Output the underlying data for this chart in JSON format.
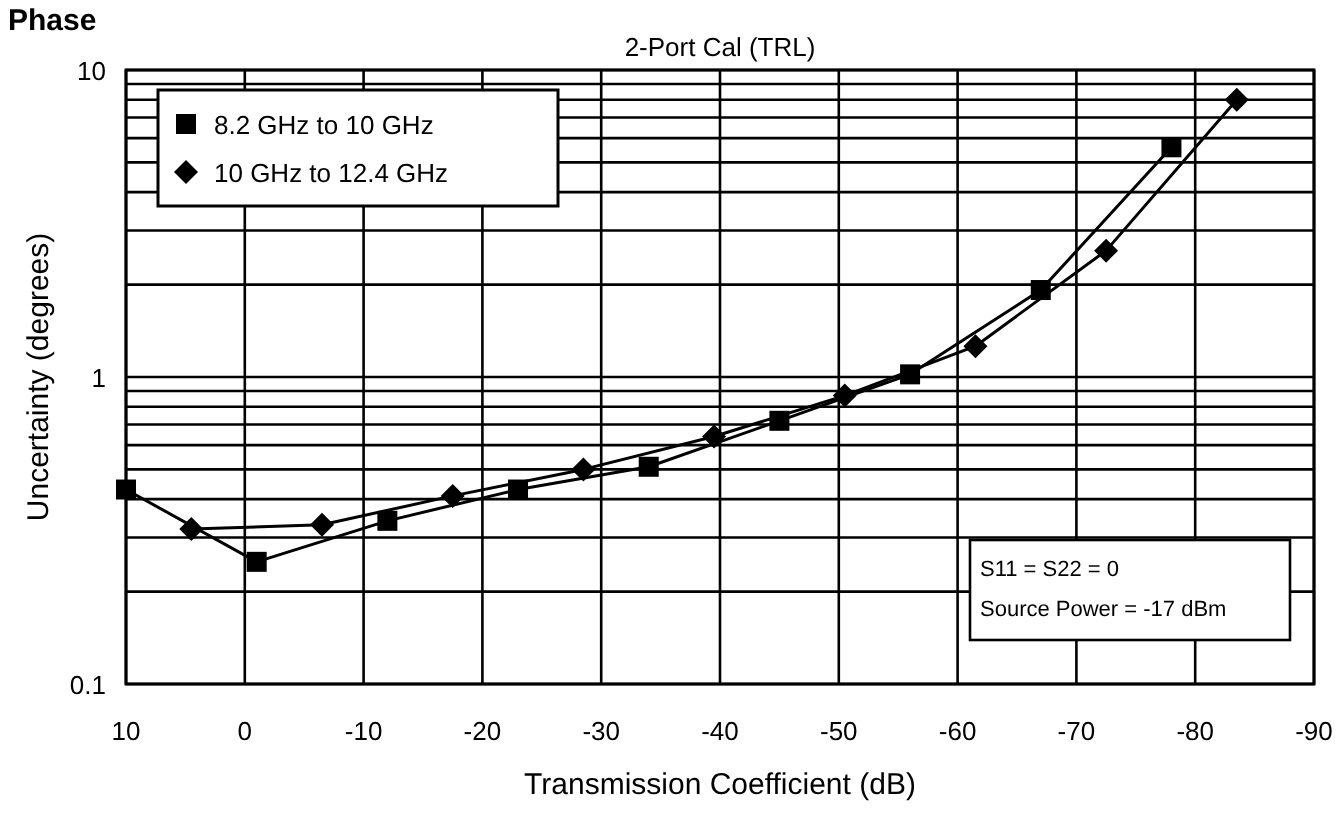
{
  "chart_data": {
    "type": "line",
    "title": "Phase",
    "subtitle": "2-Port Cal (TRL)",
    "xlabel": "Transmission Coefficient (dB)",
    "ylabel": "Uncertainty (degrees)",
    "annotations": [
      "S11 = S22 = 0",
      "Source Power = -17 dBm"
    ],
    "series": [
      {
        "name": "8.2 GHz to 10 GHz",
        "color": "#000000",
        "marker": "square",
        "x": [
          10,
          -1,
          -12,
          -23,
          -34,
          -45,
          -56,
          -67,
          -78
        ],
        "values": [
          0.43,
          0.25,
          0.34,
          0.43,
          0.51,
          0.72,
          1.02,
          1.92,
          5.6
        ]
      },
      {
        "name": "10 GHz to 12.4 GHz",
        "color": "#000000",
        "marker": "diamond",
        "x": [
          4.5,
          -6.5,
          -17.5,
          -28.5,
          -39.5,
          -50.5,
          -61.5,
          -72.5,
          -83.5
        ],
        "values": [
          0.32,
          0.33,
          0.41,
          0.5,
          0.64,
          0.87,
          1.26,
          2.58,
          8.0
        ]
      }
    ],
    "xlim": [
      10,
      -90
    ],
    "xticks": [
      10,
      0,
      -10,
      -20,
      -30,
      -40,
      -50,
      -60,
      -70,
      -80,
      -90
    ],
    "ylim": [
      0.1,
      10
    ],
    "yticks": [
      0.1,
      1,
      10
    ],
    "log": true,
    "grid": true,
    "legend": "top left",
    "line_style": "solid"
  }
}
